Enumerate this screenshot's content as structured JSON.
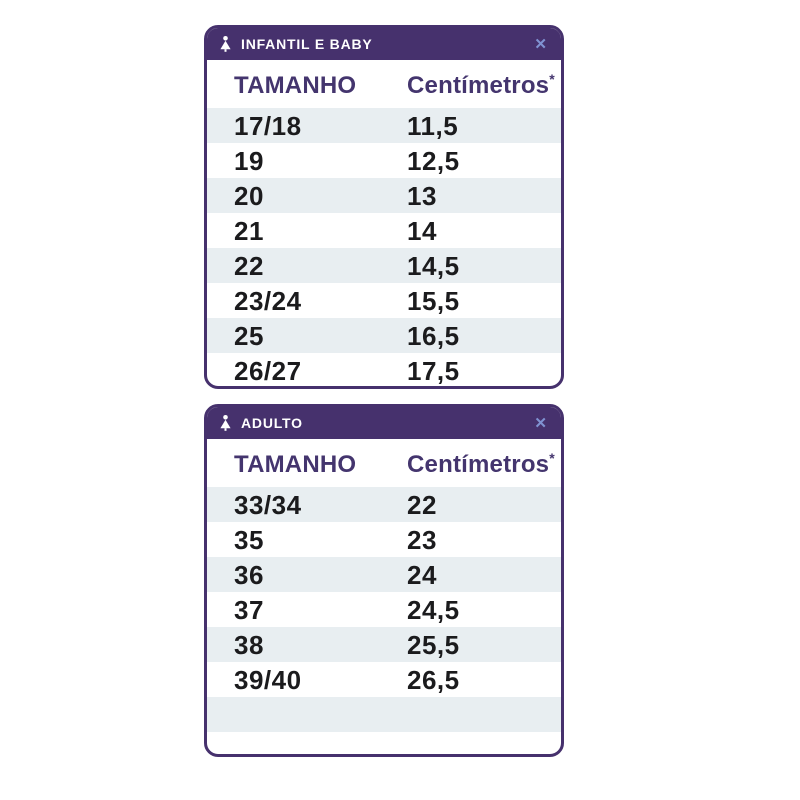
{
  "colors": {
    "brand_purple": "#46316d",
    "column_header_purple": "#44356e",
    "row_shade": "#e8eef1",
    "data_text": "#1b1b1d",
    "close_icon": "#8093d2",
    "header_text": "#ffffff"
  },
  "tables": [
    {
      "title": "INFANTIL E BABY",
      "icon": "dress-form-icon",
      "close_label": "✕",
      "columns": [
        "TAMANHO",
        "Centímetros"
      ],
      "footnote_marker": "*",
      "rows": [
        [
          "17/18",
          "11,5"
        ],
        [
          "19",
          "12,5"
        ],
        [
          "20",
          "13"
        ],
        [
          "21",
          "14"
        ],
        [
          "22",
          "14,5"
        ],
        [
          "23/24",
          "15,5"
        ],
        [
          "25",
          "16,5"
        ],
        [
          "26/27",
          "17,5"
        ]
      ]
    },
    {
      "title": "ADULTO",
      "icon": "dress-form-icon",
      "close_label": "✕",
      "columns": [
        "TAMANHO",
        "Centímetros"
      ],
      "footnote_marker": "*",
      "rows": [
        [
          "33/34",
          "22"
        ],
        [
          "35",
          "23"
        ],
        [
          "36",
          "24"
        ],
        [
          "37",
          "24,5"
        ],
        [
          "38",
          "25,5"
        ],
        [
          "39/40",
          "26,5"
        ],
        [
          "",
          ""
        ]
      ]
    }
  ]
}
